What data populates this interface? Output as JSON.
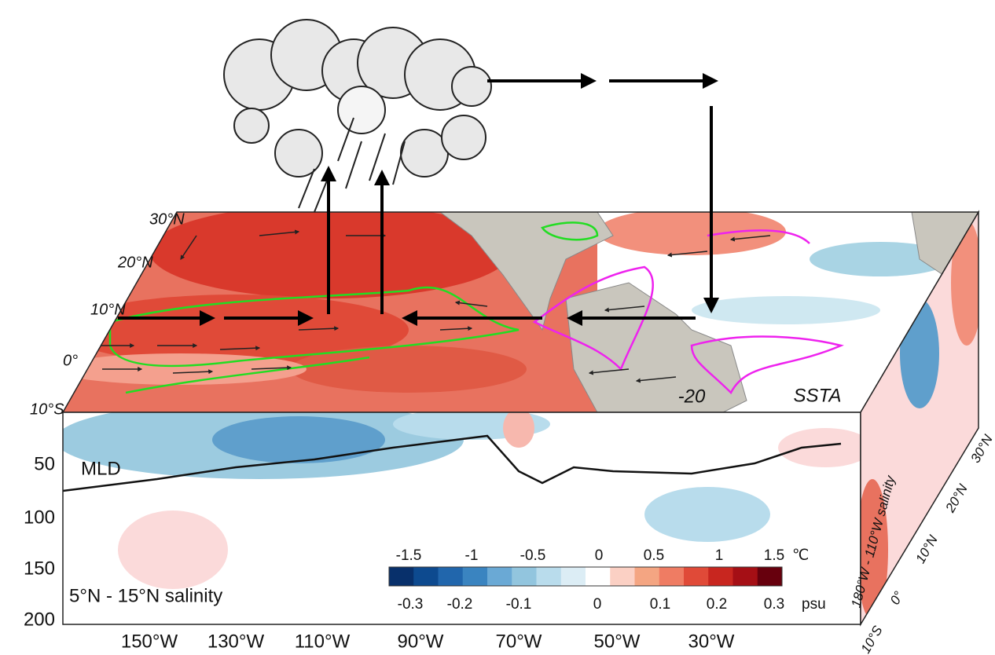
{
  "lat_labels": [
    "30°N",
    "20°N",
    "10°N",
    "0°",
    "10°S"
  ],
  "contour_label": "-20",
  "field_label": "SSTA",
  "depth_labels": [
    "50",
    "100",
    "150",
    "200"
  ],
  "mld_label": "MLD",
  "section_label": "5°N - 15°N salinity",
  "colorbar": {
    "temperature_labels": [
      "-1.5",
      "-1",
      "-0.5",
      "0",
      "0.5",
      "1",
      "1.5"
    ],
    "temperature_unit": "℃",
    "salinity_labels": [
      "-0.3",
      "-0.2",
      "-0.1",
      "0",
      "0.1",
      "0.2",
      "0.3"
    ],
    "salinity_unit": "psu"
  },
  "lon_labels": [
    "150°W",
    "130°W",
    "110°W",
    "90°W",
    "70°W",
    "50°W",
    "30°W"
  ],
  "side": {
    "title": "180°W - 110°W salinity",
    "lat_labels": [
      "10°S",
      "0°",
      "10°N",
      "20°N",
      "30°N"
    ]
  }
}
